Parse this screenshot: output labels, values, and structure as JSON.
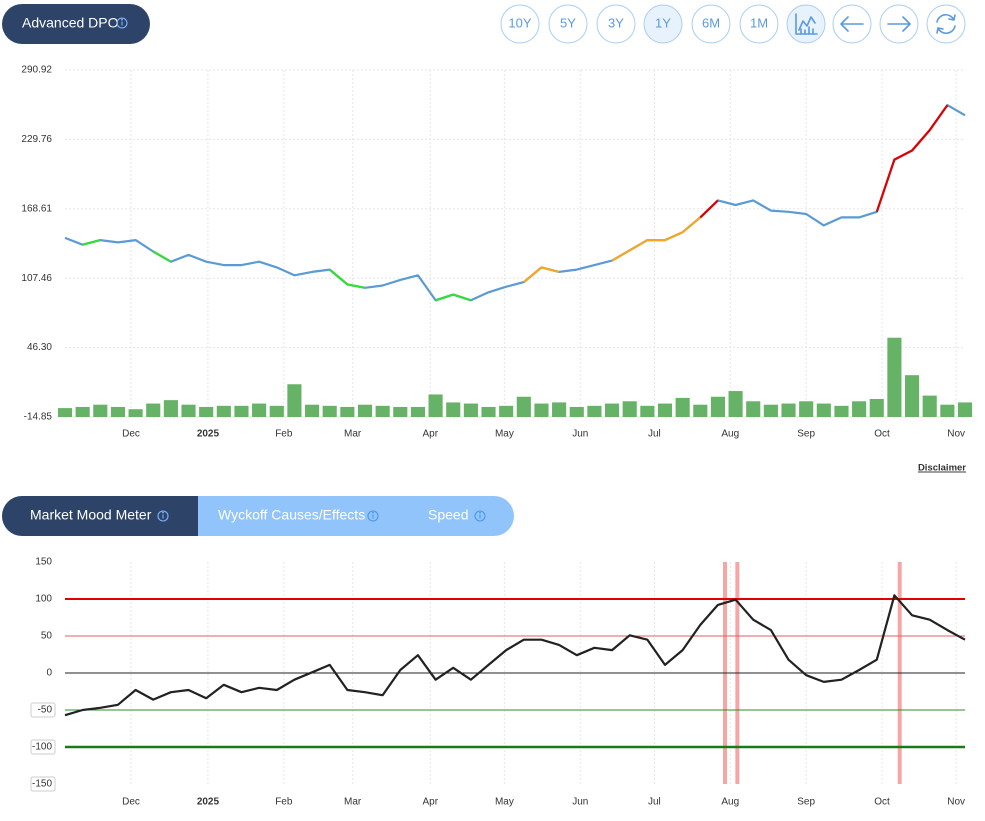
{
  "header": {
    "title": "Advanced DPO",
    "range_buttons": [
      "10Y",
      "5Y",
      "3Y",
      "1Y",
      "6M",
      "1M"
    ]
  },
  "chart_data": [
    {
      "type": "line",
      "xlim": [
        0,
        51
      ],
      "xticks": [
        {
          "value": 3.74,
          "label": "Dec"
        },
        {
          "value": 8.1,
          "label": "2025"
        },
        {
          "value": 12.4,
          "label": "Feb"
        },
        {
          "value": 16.3,
          "label": "Mar"
        },
        {
          "value": 20.7,
          "label": "Apr"
        },
        {
          "value": 24.9,
          "label": "May"
        },
        {
          "value": 29.2,
          "label": "Jun"
        },
        {
          "value": 33.4,
          "label": "Jul"
        },
        {
          "value": 37.7,
          "label": "Aug"
        },
        {
          "value": 42.0,
          "label": "Sep"
        },
        {
          "value": 46.3,
          "label": "Oct"
        },
        {
          "value": 50.5,
          "label": "Nov"
        }
      ],
      "ylim": [
        -14.85,
        290.92
      ],
      "yticks": [
        -14.85,
        {
          "value": 46.3,
          "label": "46.30"
        },
        107.46,
        168.61,
        229.76,
        290.92
      ],
      "grid": true,
      "series": [
        {
          "type": "bar",
          "color": "#66b266",
          "values": [
            -7,
            -6,
            -4,
            -6,
            -8,
            -3,
            0,
            -4,
            -6,
            -5,
            -5,
            -3,
            -5,
            14,
            -4,
            -5,
            -6,
            -4,
            -5,
            -6,
            -6,
            5,
            -2,
            -3,
            -6,
            -5,
            3,
            -3,
            -2,
            -6,
            -5,
            -3,
            -1,
            -5,
            -3,
            2,
            -4,
            3,
            8,
            -1,
            -4,
            -3,
            -1,
            -3,
            -5,
            -1,
            1,
            55,
            22,
            4,
            -4,
            -2
          ]
        },
        {
          "color": "#5b9bd5",
          "values": [
            143,
            137,
            141,
            139,
            141,
            131,
            122,
            128,
            122,
            119,
            119,
            122,
            117,
            110,
            113,
            115,
            102,
            99,
            101,
            106,
            110,
            88,
            93,
            88,
            95,
            100,
            104,
            117,
            113,
            115,
            119,
            123,
            132,
            141,
            141,
            148,
            161,
            176,
            172,
            176,
            167,
            166,
            164,
            154,
            161,
            161,
            166,
            212,
            220,
            238,
            260,
            251
          ]
        },
        {
          "color": "#33dd33",
          "values": [
            null,
            137,
            141,
            null,
            null,
            131,
            122,
            null,
            null,
            null,
            null,
            null,
            null,
            null,
            null,
            115,
            102,
            99,
            null,
            null,
            null,
            88,
            93,
            88,
            null,
            null,
            null,
            null,
            null,
            null,
            null,
            null,
            null,
            null,
            null,
            null,
            null,
            null,
            null,
            null,
            null,
            null,
            null,
            null,
            null,
            null,
            null,
            null,
            null,
            null,
            null,
            null
          ]
        },
        {
          "color": "#f5a623",
          "values": [
            null,
            null,
            null,
            null,
            null,
            null,
            null,
            null,
            null,
            null,
            null,
            null,
            null,
            null,
            null,
            null,
            null,
            null,
            null,
            null,
            null,
            null,
            null,
            null,
            null,
            null,
            104,
            117,
            113,
            null,
            null,
            123,
            132,
            141,
            141,
            148,
            161,
            null,
            null,
            null,
            null,
            null,
            null,
            null,
            null,
            null,
            null,
            null,
            null,
            null,
            null,
            null
          ]
        },
        {
          "color": "#e00000",
          "values": [
            null,
            null,
            null,
            null,
            null,
            null,
            null,
            null,
            null,
            null,
            null,
            null,
            null,
            null,
            null,
            null,
            null,
            null,
            null,
            null,
            null,
            null,
            null,
            null,
            null,
            null,
            null,
            null,
            null,
            null,
            null,
            null,
            null,
            null,
            null,
            null,
            161,
            176,
            null,
            null,
            null,
            null,
            null,
            null,
            null,
            null,
            166,
            212,
            220,
            238,
            260,
            null
          ]
        }
      ]
    },
    {
      "type": "line",
      "xlim": [
        0,
        51
      ],
      "xticks": [
        {
          "value": 3.74,
          "label": "Dec"
        },
        {
          "value": 8.1,
          "label": "2025"
        },
        {
          "value": 12.4,
          "label": "Feb"
        },
        {
          "value": 16.3,
          "label": "Mar"
        },
        {
          "value": 20.7,
          "label": "Apr"
        },
        {
          "value": 24.9,
          "label": "May"
        },
        {
          "value": 29.2,
          "label": "Jun"
        },
        {
          "value": 33.4,
          "label": "Jul"
        },
        {
          "value": 37.7,
          "label": "Aug"
        },
        {
          "value": 42.0,
          "label": "Sep"
        },
        {
          "value": 46.3,
          "label": "Oct"
        },
        {
          "value": 50.5,
          "label": "Nov"
        }
      ],
      "ylim": [
        -150,
        150
      ],
      "yticks": [
        150,
        100,
        50,
        0,
        -50,
        -100,
        -150
      ],
      "grid": "x",
      "reference_lines": [
        {
          "value": 100,
          "color": "#e00000",
          "width": 2
        },
        {
          "value": 50,
          "color": "#e06060",
          "width": 1
        },
        {
          "value": 0,
          "color": "#222222",
          "width": 1
        },
        {
          "value": -50,
          "color": "#2e8b2e",
          "width": 1
        },
        {
          "value": -100,
          "color": "#1a7a1a",
          "width": 2.5
        }
      ],
      "highlights": [
        37.4,
        38.1,
        47.3
      ],
      "highlight_color": "#f7a6a6",
      "series": [
        {
          "color": "#222222",
          "values": [
            -57,
            -50,
            -47,
            -43,
            -23,
            -36,
            -26,
            -23,
            -34,
            -16,
            -26,
            -20,
            -23,
            -9,
            1,
            11,
            -23,
            -26,
            -30,
            4,
            24,
            -9,
            7,
            -9,
            11,
            31,
            45,
            45,
            38,
            24,
            34,
            31,
            51,
            45,
            11,
            31,
            65,
            92,
            99,
            72,
            58,
            18,
            -3,
            -12,
            -9,
            4,
            18,
            105,
            78,
            72,
            58,
            45
          ]
        }
      ]
    }
  ],
  "disclaimer": "Disclaimer",
  "tabs": [
    "Market Mood Meter",
    "Wyckoff Causes/Effects",
    "Speed"
  ]
}
